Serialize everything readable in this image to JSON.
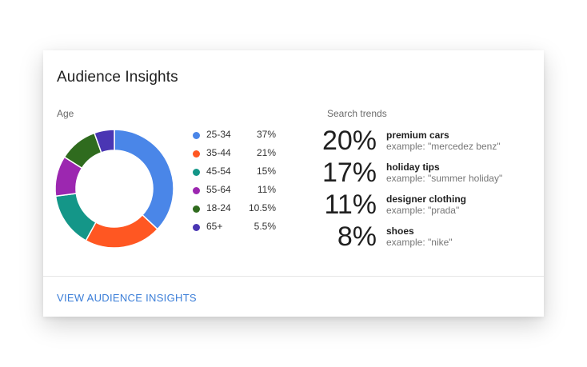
{
  "card": {
    "title": "Audience Insights",
    "age_label": "Age",
    "trends_label": "Search trends",
    "link_label": "VIEW AUDIENCE INSIGHTS"
  },
  "age": [
    {
      "label": "25-34",
      "pct_text": "37%",
      "value": 37,
      "color": "#4a86e8"
    },
    {
      "label": "35-44",
      "pct_text": "21%",
      "value": 21,
      "color": "#ff5722"
    },
    {
      "label": "45-54",
      "pct_text": "15%",
      "value": 15,
      "color": "#149688"
    },
    {
      "label": "55-64",
      "pct_text": "11%",
      "value": 11,
      "color": "#9c27b0"
    },
    {
      "label": "18-24",
      "pct_text": "10.5%",
      "value": 10.5,
      "color": "#2f6b1e"
    },
    {
      "label": "65+",
      "pct_text": "5.5%",
      "value": 5.5,
      "color": "#4a36b3"
    }
  ],
  "trends": [
    {
      "pct": "20%",
      "name": "premium cars",
      "example": "example: \"mercedez benz\""
    },
    {
      "pct": "17%",
      "name": "holiday tips",
      "example": "example: \"summer holiday\""
    },
    {
      "pct": "11%",
      "name": "designer clothing",
      "example": "example: \"prada\""
    },
    {
      "pct": "8%",
      "name": "shoes",
      "example": "example: \"nike\""
    }
  ],
  "colors": {
    "link": "#3b7ed8"
  }
}
